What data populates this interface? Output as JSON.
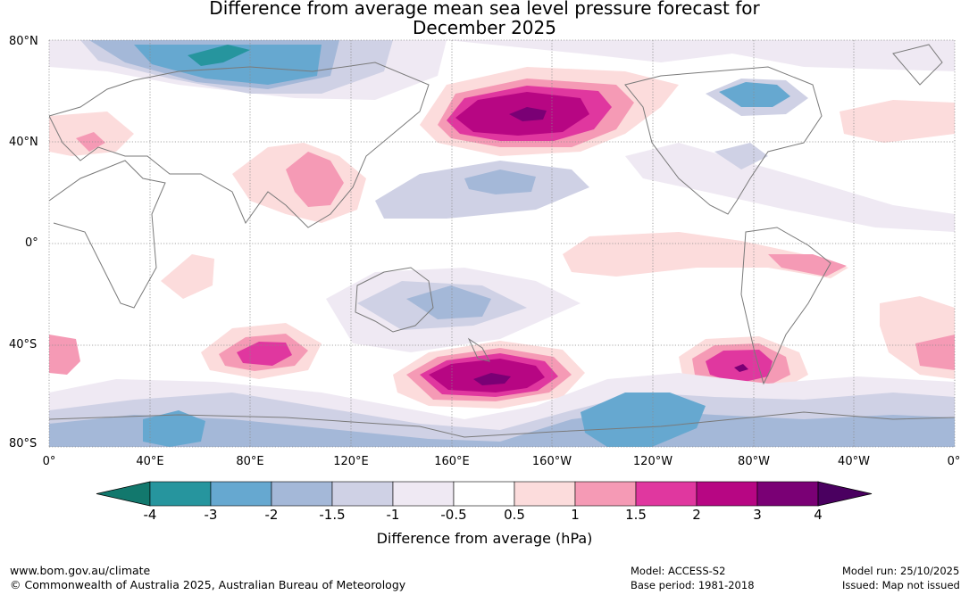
{
  "header": {
    "title_line1": "Difference from average mean sea level pressure forecast for",
    "title_line2": "December 2025"
  },
  "map": {
    "lat_labels": [
      "80°N",
      "40°N",
      "0°",
      "40°S",
      "80°S"
    ],
    "lon_labels": [
      "0°",
      "40°E",
      "80°E",
      "120°E",
      "160°E",
      "160°W",
      "120°W",
      "80°W",
      "40°W",
      "0°"
    ]
  },
  "colorbar": {
    "tick_labels": [
      "-4",
      "-3",
      "-2",
      "-1.5",
      "-1",
      "-0.5",
      "0.5",
      "1",
      "1.5",
      "2",
      "3",
      "4"
    ],
    "colors": [
      "#12786d",
      "#26959e",
      "#66a8d0",
      "#a4b8d8",
      "#cfd1e5",
      "#efe9f3",
      "#ffffff",
      "#fcdcdc",
      "#f59ab5",
      "#e0379f",
      "#b70683",
      "#7a0075",
      "#4a0060"
    ],
    "label": "Difference from average (hPa)"
  },
  "footer": {
    "website": "www.bom.gov.au/climate",
    "copyright": "© Commonwealth of Australia 2025, Australian Bureau of Meteorology",
    "model": "Model: ACCESS-S2",
    "base_period": "Base period: 1981-2018",
    "model_run": "Model run: 25/10/2025",
    "issued": "Issued: Map not issued"
  }
}
